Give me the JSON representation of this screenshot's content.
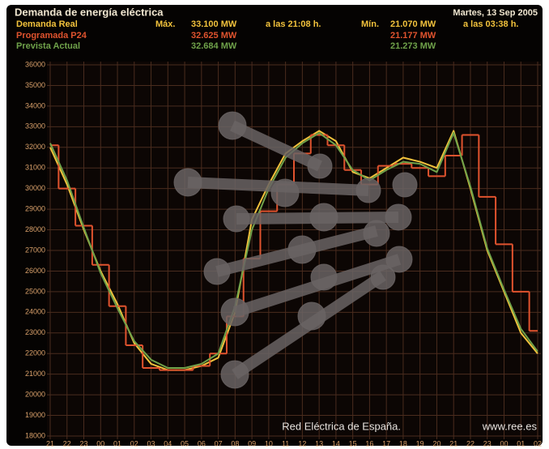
{
  "chart_data": {
    "type": "line",
    "title": "Demanda de energía eléctrica",
    "date": "Martes, 13 Sep 2005",
    "max_label": "Máx.",
    "min_label": "Mín.",
    "max_time": "a las 21:08 h.",
    "min_time": "a las 03:38 h.",
    "watermark": "Red Eléctrica de España.",
    "url": "www.ree.es",
    "categories": [
      "21",
      "22",
      "23",
      "00",
      "01",
      "02",
      "03",
      "04",
      "05",
      "06",
      "07",
      "08",
      "09",
      "10",
      "11",
      "12",
      "13",
      "14",
      "15",
      "16",
      "17",
      "18",
      "19",
      "20",
      "21",
      "22",
      "23",
      "00",
      "01",
      "02"
    ],
    "series": [
      {
        "name": "Demanda Real",
        "color": "#f2c23c",
        "max_text": "33.100 MW",
        "min_text": "21.070 MW",
        "values": [
          32000,
          30200,
          28000,
          26000,
          24400,
          22500,
          21500,
          21200,
          21200,
          21400,
          21800,
          24000,
          28500,
          30200,
          31700,
          32300,
          32800,
          32300,
          30800,
          30500,
          31000,
          31500,
          31300,
          31000,
          32800,
          30000,
          27000,
          25000,
          23000,
          22000
        ]
      },
      {
        "name": "Programada P24",
        "color": "#e0532e",
        "step": true,
        "max_text": "32.625 MW",
        "min_text": "21.177 MW",
        "values": [
          32100,
          30000,
          28200,
          26300,
          24300,
          22400,
          21300,
          21200,
          21200,
          21400,
          22000,
          23800,
          26600,
          28900,
          30200,
          31700,
          32600,
          32100,
          30900,
          30200,
          31100,
          31200,
          31000,
          30600,
          31600,
          32600,
          29600,
          27300,
          25000,
          23100
        ]
      },
      {
        "name": "Prevista Actual",
        "color": "#6fa24a",
        "max_text": "32.684 MW",
        "min_text": "21.273 MW",
        "values": [
          32200,
          30400,
          28100,
          25900,
          24200,
          22600,
          21700,
          21300,
          21300,
          21500,
          22000,
          24300,
          28000,
          30000,
          31500,
          32200,
          32700,
          32100,
          30900,
          30400,
          30900,
          31300,
          31200,
          30800,
          32700,
          30100,
          27100,
          25100,
          23200,
          22100
        ]
      }
    ],
    "ylim": [
      18000,
      36000
    ],
    "yticks": [
      18000,
      19000,
      20000,
      21000,
      22000,
      23000,
      24000,
      25000,
      26000,
      27000,
      28000,
      29000,
      30000,
      31000,
      32000,
      33000,
      34000,
      35000,
      36000
    ],
    "grid": true
  }
}
